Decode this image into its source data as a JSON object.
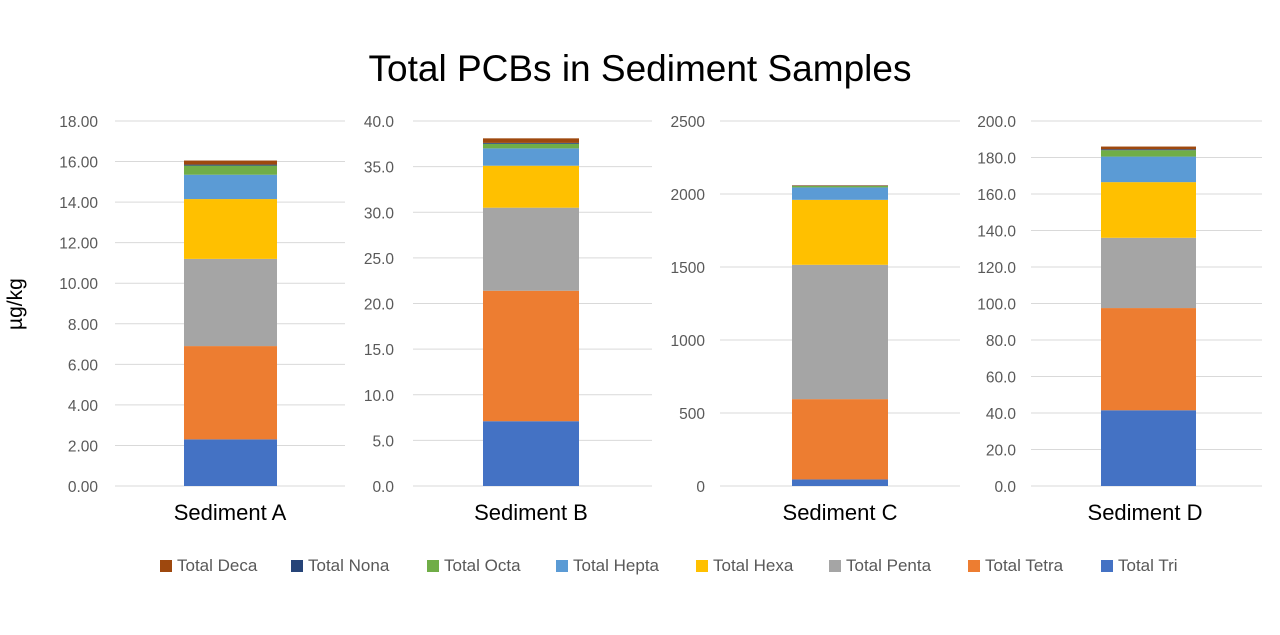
{
  "chart_data": {
    "type": "bar",
    "title": "Total PCBs in Sediment Samples",
    "ylabel": "µg/kg",
    "stacked": true,
    "grid": true,
    "legend_position": "bottom",
    "legend": [
      {
        "name": "Total Deca",
        "color": "#9E480E"
      },
      {
        "name": "Total Nona",
        "color": "#264478"
      },
      {
        "name": "Total Octa",
        "color": "#70AD47"
      },
      {
        "name": "Total Hepta",
        "color": "#5B9BD5"
      },
      {
        "name": "Total Hexa",
        "color": "#FFC000"
      },
      {
        "name": "Total Penta",
        "color": "#A5A5A5"
      },
      {
        "name": "Total Tetra",
        "color": "#ED7D31"
      },
      {
        "name": "Total Tri",
        "color": "#4472C4"
      }
    ],
    "panels": [
      {
        "category": "Sediment A",
        "ylim": [
          0,
          18
        ],
        "ticks": [
          "0.00",
          "2.00",
          "4.00",
          "6.00",
          "8.00",
          "10.00",
          "12.00",
          "14.00",
          "16.00",
          "18.00"
        ],
        "segments": [
          {
            "name": "Total Tri",
            "value": 2.3
          },
          {
            "name": "Total Tetra",
            "value": 4.6
          },
          {
            "name": "Total Penta",
            "value": 4.3
          },
          {
            "name": "Total Hexa",
            "value": 2.95
          },
          {
            "name": "Total Hepta",
            "value": 1.2
          },
          {
            "name": "Total Octa",
            "value": 0.45
          },
          {
            "name": "Total Nona",
            "value": 0.05
          },
          {
            "name": "Total Deca",
            "value": 0.2
          }
        ]
      },
      {
        "category": "Sediment B",
        "ylim": [
          0,
          40
        ],
        "ticks": [
          "0.0",
          "5.0",
          "10.0",
          "15.0",
          "20.0",
          "25.0",
          "30.0",
          "35.0",
          "40.0"
        ],
        "segments": [
          {
            "name": "Total Tri",
            "value": 7.1
          },
          {
            "name": "Total Tetra",
            "value": 14.3
          },
          {
            "name": "Total Penta",
            "value": 9.1
          },
          {
            "name": "Total Hexa",
            "value": 4.6
          },
          {
            "name": "Total Hepta",
            "value": 1.9
          },
          {
            "name": "Total Octa",
            "value": 0.5
          },
          {
            "name": "Total Nona",
            "value": 0.1
          },
          {
            "name": "Total Deca",
            "value": 0.5
          }
        ]
      },
      {
        "category": "Sediment C",
        "ylim": [
          0,
          2500
        ],
        "ticks": [
          "0",
          "500",
          "1000",
          "1500",
          "2000",
          "2500"
        ],
        "segments": [
          {
            "name": "Total Tri",
            "value": 45
          },
          {
            "name": "Total Tetra",
            "value": 550
          },
          {
            "name": "Total Penta",
            "value": 920
          },
          {
            "name": "Total Hexa",
            "value": 445
          },
          {
            "name": "Total Hepta",
            "value": 85
          },
          {
            "name": "Total Octa",
            "value": 10
          },
          {
            "name": "Total Nona",
            "value": 2
          },
          {
            "name": "Total Deca",
            "value": 3
          }
        ]
      },
      {
        "category": "Sediment D",
        "ylim": [
          0,
          200
        ],
        "ticks": [
          "0.0",
          "20.0",
          "40.0",
          "60.0",
          "80.0",
          "100.0",
          "120.0",
          "140.0",
          "160.0",
          "180.0",
          "200.0"
        ],
        "segments": [
          {
            "name": "Total Tri",
            "value": 41.5
          },
          {
            "name": "Total Tetra",
            "value": 56
          },
          {
            "name": "Total Penta",
            "value": 38.5
          },
          {
            "name": "Total Hexa",
            "value": 30.5
          },
          {
            "name": "Total Hepta",
            "value": 14
          },
          {
            "name": "Total Octa",
            "value": 3.5
          },
          {
            "name": "Total Nona",
            "value": 0.5
          },
          {
            "name": "Total Deca",
            "value": 1.5
          }
        ]
      }
    ]
  }
}
